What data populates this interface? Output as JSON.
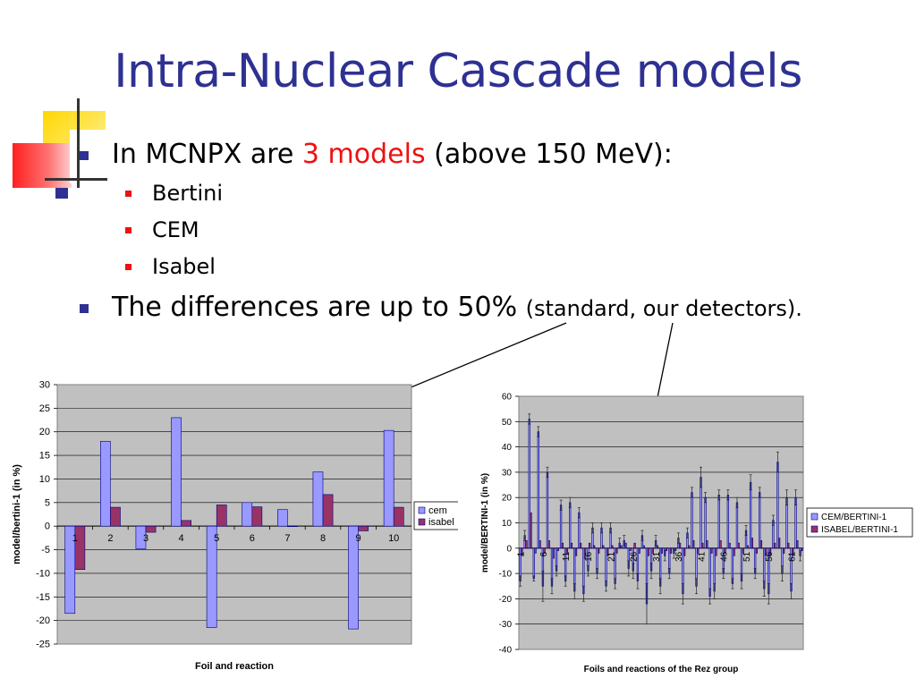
{
  "slide": {
    "title": "Intra-Nuclear Cascade models",
    "bullet1": {
      "prefix": "In MCNPX are ",
      "highlight": "3 models",
      "suffix": " (above 150 MeV):"
    },
    "sub_bullets": [
      "Bertini",
      "CEM",
      "Isabel"
    ],
    "bullet2": {
      "main": "The differences are up to 50% ",
      "small": "(standard, our detectors)."
    }
  },
  "colors": {
    "title": "#2e3192",
    "highlight": "#ee1111",
    "series1": "#9999ff",
    "series2": "#993366",
    "plot_bg": "#c0c0c0"
  },
  "chart_data": [
    {
      "type": "bar",
      "categories": [
        "1",
        "2",
        "3",
        "4",
        "5",
        "6",
        "7",
        "8",
        "9",
        "10"
      ],
      "series": [
        {
          "name": "cem",
          "values": [
            -18.5,
            18,
            -4.8,
            23,
            -21.5,
            5,
            3.5,
            11.5,
            -21.8,
            20.3
          ]
        },
        {
          "name": "isabel",
          "values": [
            -9.2,
            4,
            -1.3,
            1.2,
            4.5,
            4.1,
            0,
            6.7,
            -1,
            4
          ]
        }
      ],
      "xlabel": "Foil and reaction",
      "ylabel": "model/bertini-1 (in %)",
      "ylim": [
        -25,
        30
      ],
      "yticks": [
        30,
        25,
        20,
        15,
        10,
        5,
        0,
        -5,
        -10,
        -15,
        -20,
        -25
      ],
      "grid": true,
      "legend": "right"
    },
    {
      "type": "bar",
      "categories": [
        "1",
        "2",
        "3",
        "4",
        "5",
        "6",
        "7",
        "8",
        "9",
        "10",
        "11",
        "12",
        "13",
        "14",
        "15",
        "16",
        "17",
        "18",
        "19",
        "20",
        "21",
        "22",
        "23",
        "24",
        "25",
        "26",
        "27",
        "28",
        "29",
        "30",
        "31",
        "32",
        "33",
        "34",
        "35",
        "36",
        "37",
        "38",
        "39",
        "40",
        "41",
        "42",
        "43",
        "44",
        "45",
        "46",
        "47",
        "48",
        "49",
        "50",
        "51",
        "52",
        "53",
        "54",
        "55",
        "56",
        "57",
        "58",
        "59",
        "60",
        "61",
        "62",
        "63"
      ],
      "tick_labels": [
        "1",
        "6",
        "11",
        "16",
        "21",
        "26",
        "31",
        "36",
        "41",
        "46",
        "51",
        "56",
        "61"
      ],
      "series": [
        {
          "name": "CEM/BERTINI-1",
          "values": [
            -13,
            5,
            51,
            -12,
            46,
            -15,
            30,
            -15,
            -9,
            17,
            -13,
            18,
            -17,
            14,
            -18,
            -9,
            8,
            -10,
            8,
            -15,
            8,
            -14,
            2,
            3,
            -8,
            -9,
            -13,
            5,
            -22,
            -9,
            3,
            -15,
            -3,
            -10,
            -2,
            4,
            -18,
            6,
            22,
            -15,
            28,
            20,
            -19,
            -17,
            21,
            -10,
            21,
            -14,
            18,
            -13,
            7,
            26,
            -10,
            22,
            -16,
            -18,
            11,
            34,
            -10,
            20,
            -17,
            20,
            -3
          ],
          "errors": [
            2,
            2,
            2,
            1,
            2,
            6,
            2,
            3,
            2,
            2,
            2,
            2,
            3,
            2,
            3,
            2,
            2,
            2,
            2,
            2,
            2,
            2,
            2,
            2,
            3,
            3,
            3,
            2,
            8,
            3,
            2,
            3,
            2,
            2,
            2,
            2,
            4,
            2,
            2,
            3,
            4,
            2,
            3,
            3,
            2,
            2,
            2,
            2,
            2,
            3,
            2,
            3,
            2,
            2,
            3,
            4,
            2,
            4,
            3,
            3,
            3,
            3,
            2
          ]
        },
        {
          "name": "ISABEL/BERTINI-1",
          "values": [
            -3,
            3,
            14,
            -2,
            3,
            -2,
            3,
            -4,
            -1,
            2,
            -2,
            2,
            -3,
            2,
            -4,
            2,
            1,
            -2,
            1,
            -3,
            1,
            -2,
            1,
            2,
            -1,
            2,
            -2,
            1,
            -3,
            -2,
            1,
            -2,
            -1,
            -2,
            -1,
            2,
            -3,
            1,
            3,
            -2,
            2,
            3,
            -2,
            -3,
            3,
            -2,
            2,
            -3,
            2,
            -2,
            1,
            4,
            -2,
            3,
            -3,
            -3,
            2,
            4,
            -2,
            2,
            -3,
            3,
            -1
          ]
        }
      ],
      "xlabel": "Foils and reactions of the Rez group",
      "ylabel": "model/BERTINI-1 (in %)",
      "ylim": [
        -40,
        60
      ],
      "yticks": [
        60,
        50,
        40,
        30,
        20,
        10,
        0,
        -10,
        -20,
        -30,
        -40
      ],
      "grid": true,
      "legend": "right"
    }
  ]
}
